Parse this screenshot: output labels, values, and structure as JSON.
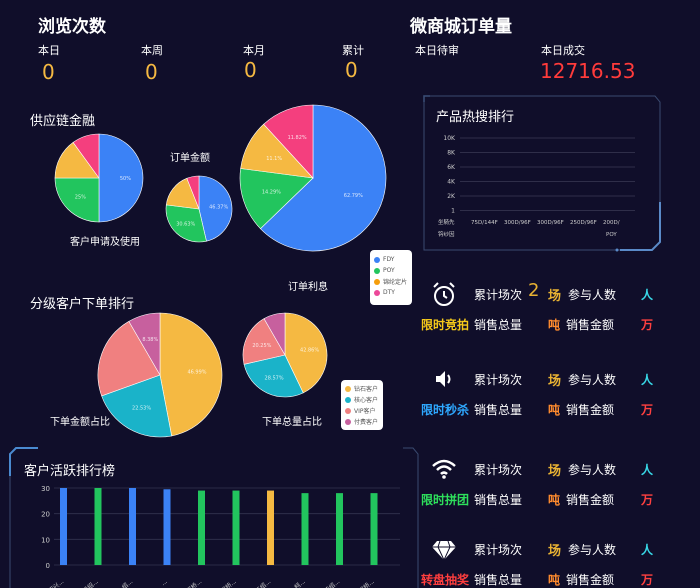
{
  "browse": {
    "title": "浏览次数",
    "stats": [
      {
        "label": "本日",
        "value": "0"
      },
      {
        "label": "本周",
        "value": "0"
      },
      {
        "label": "本月",
        "value": "0"
      },
      {
        "label": "累计",
        "value": "0"
      }
    ]
  },
  "mall": {
    "title": "微商城订单量",
    "pending_label": "本日待审",
    "deal_label": "本日成交",
    "deal_value": "12716.53"
  },
  "supply": {
    "title": "供应链金融",
    "pie1_caption": "客户申请及使用",
    "pie2_title": "订单金额",
    "pie3_caption": "订单利息"
  },
  "hot": {
    "title": "产品热搜排行",
    "ticks": [
      "10K",
      "8K",
      "6K",
      "4K",
      "2K",
      "1"
    ],
    "x_labels_row1": [
      "坐騎先",
      "75D/144F",
      "300D/96F",
      "300D/96F",
      "250D/96F",
      "200D/"
    ],
    "x_labels_row2": [
      "钩纱因",
      "POY"
    ]
  },
  "legend1": {
    "items": [
      {
        "label": "FDY",
        "color": "#3b82f6"
      },
      {
        "label": "POY",
        "color": "#22c55e"
      },
      {
        "label": "锦纶定片",
        "color": "#f59e0b"
      },
      {
        "label": "DTY",
        "color": "#ec4899"
      }
    ]
  },
  "tier": {
    "title": "分级客户下单排行",
    "caption_left": "下单金额占比",
    "caption_right": "下单总量占比"
  },
  "legend2": {
    "items": [
      {
        "label": "钻石客户",
        "color": "#f5b942"
      },
      {
        "label": "核心客户",
        "color": "#1ab3c9"
      },
      {
        "label": "VIP客户",
        "color": "#f08080"
      },
      {
        "label": "付费客户",
        "color": "#c7609e"
      }
    ]
  },
  "active": {
    "title": "客户活跃排行榜",
    "yticks": [
      "30",
      "20",
      "10",
      "0"
    ],
    "xlabels": [
      "绍兴...",
      "柯桥绍...",
      "绍...",
      "...",
      "柯桥...",
      "柯桥...",
      "浙江绍...",
      "柯...",
      "柯桥绍...",
      "柯桥..."
    ]
  },
  "promos": [
    {
      "tag": "限时竞拍",
      "icon": "alarm-clock-icon",
      "count_label": "累计场次",
      "count_value": "2",
      "count_unit": "场",
      "people_label": "参与人数",
      "people_unit": "人",
      "total_label": "销售总量",
      "total_unit": "吨",
      "amount_label": "销售金额",
      "amount_unit": "万"
    },
    {
      "tag": "限时秒杀",
      "icon": "speaker-icon",
      "count_label": "累计场次",
      "count_value": "",
      "count_unit": "场",
      "people_label": "参与人数",
      "people_unit": "人",
      "total_label": "销售总量",
      "total_unit": "吨",
      "amount_label": "销售金额",
      "amount_unit": "万"
    },
    {
      "tag": "限时拼团",
      "icon": "wifi-icon",
      "count_label": "累计场次",
      "count_value": "",
      "count_unit": "场",
      "people_label": "参与人数",
      "people_unit": "人",
      "total_label": "销售总量",
      "total_unit": "吨",
      "amount_label": "销售金额",
      "amount_unit": "万"
    },
    {
      "tag": "转盘抽奖",
      "icon": "diamond-icon",
      "count_label": "累计场次",
      "count_value": "",
      "count_unit": "场",
      "people_label": "参与人数",
      "people_unit": "人",
      "total_label": "销售总量",
      "total_unit": "吨",
      "amount_label": "销售金额",
      "amount_unit": "万"
    }
  ],
  "chart_data": [
    {
      "type": "pie",
      "name": "supply-pie-1",
      "slices": [
        {
          "label": "FDY",
          "value": 50,
          "text": "50%",
          "color": "#3b82f6"
        },
        {
          "label": "POY",
          "value": 25,
          "text": "25%",
          "color": "#22c55e"
        },
        {
          "label": "锦纶定片",
          "value": 15,
          "text": "",
          "color": "#f5b942"
        },
        {
          "label": "DTY",
          "value": 10,
          "text": "",
          "color": "#f43f7e"
        }
      ]
    },
    {
      "type": "pie",
      "name": "supply-pie-2",
      "slices": [
        {
          "label": "FDY",
          "value": 46.37,
          "text": "46.37%",
          "color": "#3b82f6"
        },
        {
          "label": "POY",
          "value": 30.63,
          "text": "30.63%",
          "color": "#22c55e"
        },
        {
          "label": "锦纶定片",
          "value": 17,
          "text": "",
          "color": "#f5b942"
        },
        {
          "label": "DTY",
          "value": 6,
          "text": "",
          "color": "#f43f7e"
        }
      ]
    },
    {
      "type": "pie",
      "name": "supply-pie-3",
      "slices": [
        {
          "label": "FDY",
          "value": 62.79,
          "text": "62.79%",
          "color": "#3b82f6"
        },
        {
          "label": "POY",
          "value": 14.29,
          "text": "14.29%",
          "color": "#22c55e"
        },
        {
          "label": "锦纶定片",
          "value": 11.1,
          "text": "11.1%",
          "color": "#f5b942"
        },
        {
          "label": "DTY",
          "value": 11.82,
          "text": "11.82%",
          "color": "#f43f7e"
        }
      ]
    },
    {
      "type": "pie",
      "name": "tier-pie-left",
      "slices": [
        {
          "label": "钻石客户",
          "value": 46.99,
          "text": "46.99%",
          "color": "#f5b942"
        },
        {
          "label": "核心客户",
          "value": 22.53,
          "text": "22.53%",
          "color": "#1ab3c9"
        },
        {
          "label": "VIP客户",
          "value": 22.1,
          "text": "",
          "color": "#f08080"
        },
        {
          "label": "付费客户",
          "value": 8.38,
          "text": "8.38%",
          "color": "#c7609e"
        }
      ]
    },
    {
      "type": "pie",
      "name": "tier-pie-right",
      "slices": [
        {
          "label": "钻石客户",
          "value": 42.86,
          "text": "42.86%",
          "color": "#f5b942"
        },
        {
          "label": "核心客户",
          "value": 28.57,
          "text": "28.57%",
          "color": "#1ab3c9"
        },
        {
          "label": "VIP客户",
          "value": 20.25,
          "text": "20.25%",
          "color": "#f08080"
        },
        {
          "label": "付费客户",
          "value": 8.32,
          "text": "",
          "color": "#c7609e"
        }
      ]
    },
    {
      "type": "bar",
      "name": "active-bar",
      "ylim": [
        0,
        30
      ],
      "values": [
        30,
        30,
        30,
        29.5,
        29,
        29,
        29,
        28,
        28,
        28
      ],
      "colors": [
        "#3b82f6",
        "#22c55e",
        "#3b82f6",
        "#3b82f6",
        "#22c55e",
        "#22c55e",
        "#f5b942",
        "#22c55e",
        "#22c55e",
        "#22c55e"
      ]
    }
  ]
}
